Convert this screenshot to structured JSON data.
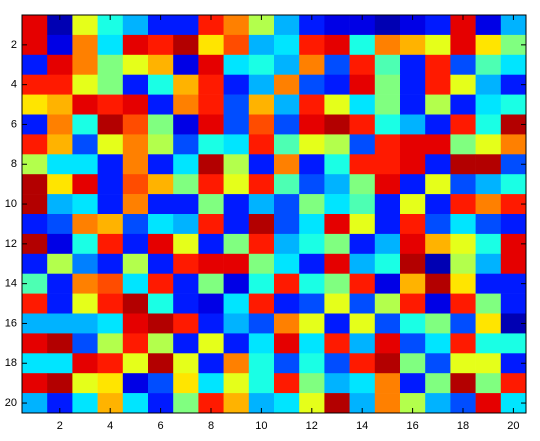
{
  "chart_data": {
    "type": "heatmap",
    "colormap": "jet",
    "clim": [
      0,
      1
    ],
    "ydir": "reverse",
    "xlim": [
      0.5,
      20.5
    ],
    "ylim": [
      0.5,
      20.5
    ],
    "xticks": [
      2,
      4,
      6,
      8,
      10,
      12,
      14,
      16,
      18,
      20
    ],
    "yticks": [
      2,
      4,
      6,
      8,
      10,
      12,
      14,
      16,
      18,
      20
    ],
    "values": [
      [
        0.9,
        0.05,
        0.6,
        0.4,
        0.3,
        0.15,
        0.15,
        0.85,
        0.75,
        0.55,
        0.3,
        0.15,
        0.1,
        0.1,
        0.05,
        0.1,
        0.15,
        0.9,
        0.1,
        0.3
      ],
      [
        0.9,
        0.1,
        0.75,
        0.35,
        0.9,
        0.85,
        0.95,
        0.65,
        0.8,
        0.3,
        0.35,
        0.85,
        0.9,
        0.4,
        0.75,
        0.7,
        0.6,
        0.9,
        0.65,
        0.5
      ],
      [
        0.15,
        0.9,
        0.75,
        0.5,
        0.6,
        0.7,
        0.1,
        0.9,
        0.35,
        0.4,
        0.3,
        0.75,
        0.2,
        0.85,
        0.45,
        0.15,
        0.85,
        0.2,
        0.45,
        0.35
      ],
      [
        0.85,
        0.85,
        0.6,
        0.5,
        0.15,
        0.4,
        0.7,
        0.85,
        0.15,
        0.3,
        0.75,
        0.2,
        0.15,
        0.9,
        0.5,
        0.15,
        0.85,
        0.6,
        0.3,
        0.15
      ],
      [
        0.65,
        0.7,
        0.9,
        0.85,
        0.9,
        0.15,
        0.75,
        0.85,
        0.2,
        0.7,
        0.3,
        0.85,
        0.6,
        0.35,
        0.5,
        0.15,
        0.55,
        0.15,
        0.35,
        0.4
      ],
      [
        0.15,
        0.75,
        0.4,
        0.95,
        0.8,
        0.5,
        0.1,
        0.9,
        0.2,
        0.8,
        0.2,
        0.9,
        0.95,
        0.85,
        0.4,
        0.3,
        0.15,
        0.85,
        0.4,
        0.95
      ],
      [
        0.85,
        0.7,
        0.2,
        0.6,
        0.75,
        0.55,
        0.2,
        0.4,
        0.35,
        0.85,
        0.45,
        0.6,
        0.55,
        0.2,
        0.85,
        0.9,
        0.9,
        0.5,
        0.6,
        0.75
      ],
      [
        0.55,
        0.35,
        0.35,
        0.15,
        0.75,
        0.15,
        0.35,
        0.95,
        0.55,
        0.15,
        0.75,
        0.15,
        0.4,
        0.85,
        0.85,
        0.9,
        0.15,
        0.95,
        0.95,
        0.2
      ],
      [
        0.95,
        0.65,
        0.9,
        0.15,
        0.8,
        0.7,
        0.5,
        0.85,
        0.6,
        0.85,
        0.45,
        0.2,
        0.3,
        0.5,
        0.9,
        0.15,
        0.6,
        0.2,
        0.3,
        0.4
      ],
      [
        0.95,
        0.3,
        0.35,
        0.15,
        0.75,
        0.15,
        0.15,
        0.5,
        0.15,
        0.3,
        0.2,
        0.5,
        0.35,
        0.45,
        0.15,
        0.6,
        0.15,
        0.85,
        0.75,
        0.85
      ],
      [
        0.15,
        0.2,
        0.75,
        0.7,
        0.2,
        0.35,
        0.3,
        0.85,
        0.15,
        0.95,
        0.2,
        0.35,
        0.9,
        0.6,
        0.15,
        0.85,
        0.2,
        0.35,
        0.2,
        0.15
      ],
      [
        0.95,
        0.1,
        0.4,
        0.85,
        0.15,
        0.9,
        0.6,
        0.15,
        0.5,
        0.85,
        0.3,
        0.4,
        0.5,
        0.15,
        0.3,
        0.9,
        0.7,
        0.6,
        0.4,
        0.9
      ],
      [
        0.15,
        0.55,
        0.25,
        0.15,
        0.55,
        0.15,
        0.85,
        0.9,
        0.9,
        0.5,
        0.35,
        0.15,
        0.9,
        0.3,
        0.4,
        0.95,
        0.05,
        0.55,
        0.3,
        0.9
      ],
      [
        0.45,
        0.15,
        0.75,
        0.8,
        0.35,
        0.85,
        0.15,
        0.5,
        0.1,
        0.4,
        0.85,
        0.4,
        0.5,
        0.85,
        0.1,
        0.7,
        0.95,
        0.65,
        0.15,
        0.15
      ],
      [
        0.85,
        0.15,
        0.6,
        0.85,
        0.95,
        0.4,
        0.15,
        0.1,
        0.35,
        0.85,
        0.15,
        0.2,
        0.6,
        0.2,
        0.55,
        0.85,
        0.1,
        0.85,
        0.5,
        0.15
      ],
      [
        0.3,
        0.3,
        0.3,
        0.35,
        0.9,
        0.95,
        0.85,
        0.15,
        0.3,
        0.2,
        0.75,
        0.6,
        0.15,
        0.6,
        0.2,
        0.4,
        0.5,
        0.2,
        0.65,
        0.05
      ],
      [
        0.9,
        0.95,
        0.2,
        0.55,
        0.85,
        0.55,
        0.15,
        0.6,
        0.15,
        0.35,
        0.9,
        0.35,
        0.85,
        0.3,
        0.9,
        0.2,
        0.35,
        0.85,
        0.4,
        0.4
      ],
      [
        0.35,
        0.35,
        0.9,
        0.85,
        0.6,
        0.95,
        0.6,
        0.15,
        0.75,
        0.4,
        0.2,
        0.4,
        0.2,
        0.85,
        0.95,
        0.5,
        0.2,
        0.6,
        0.6,
        0.15
      ],
      [
        0.9,
        0.95,
        0.6,
        0.65,
        0.1,
        0.2,
        0.65,
        0.35,
        0.6,
        0.4,
        0.85,
        0.5,
        0.3,
        0.35,
        0.75,
        0.15,
        0.5,
        0.95,
        0.5,
        0.85
      ],
      [
        0.3,
        0.15,
        0.35,
        0.7,
        0.35,
        0.15,
        0.5,
        0.85,
        0.7,
        0.3,
        0.35,
        0.6,
        0.95,
        0.3,
        0.75,
        0.55,
        0.3,
        0.2,
        0.9,
        0.35
      ]
    ]
  }
}
